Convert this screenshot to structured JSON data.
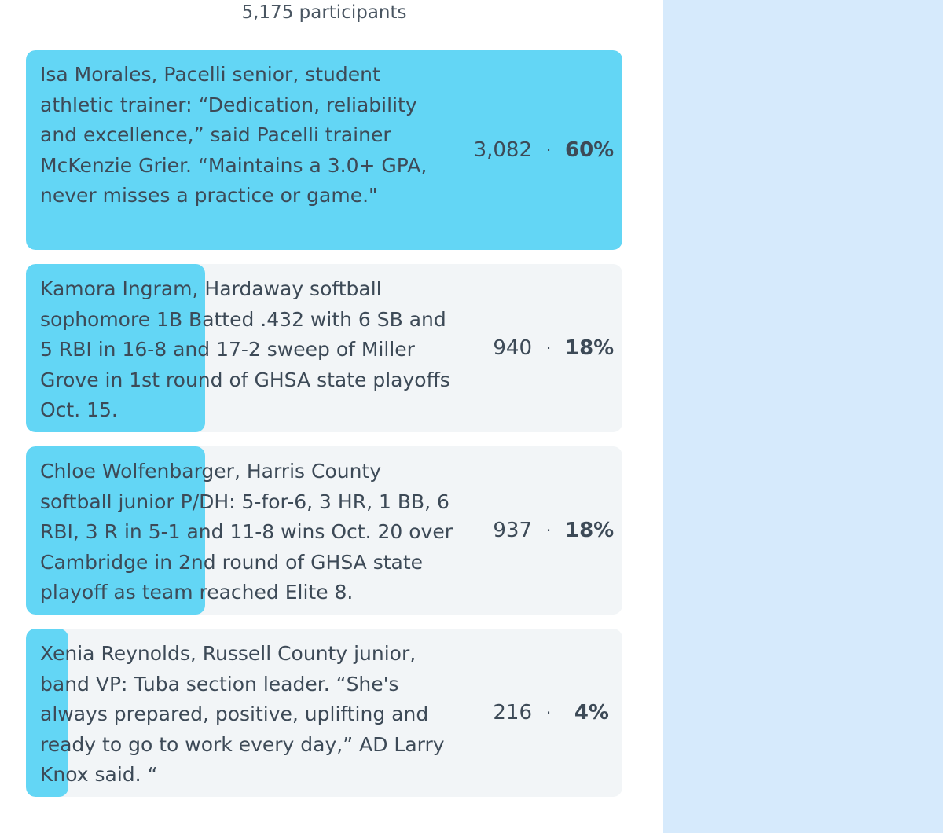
{
  "colors": {
    "bar_fill": "#63d6f5",
    "option_background": "#f2f5f7",
    "side_panel": "#d6eafc",
    "text": "#3d4a57"
  },
  "poll": {
    "participants_label": "5,175 participants",
    "options": [
      {
        "text": "Isa Morales, Pacelli senior, student athletic trainer: “Dedication, reliability and excellence,” said Pacelli trainer McKenzie Grier. “Maintains a 3.0+ GPA, never misses a practice or game.\"",
        "votes": "3,082",
        "percent": "60%",
        "share": 0.6
      },
      {
        "text": "Kamora Ingram, Hardaway softball sophomore 1B Batted .432 with 6 SB and 5 RBI in 16-8 and 17-2 sweep of Miller Grove in 1st round of GHSA state playoffs Oct. 15.",
        "votes": "940",
        "percent": "18%",
        "share": 0.18
      },
      {
        "text": "Chloe Wolfenbarger, Harris County softball junior P/DH: 5-for-6, 3 HR, 1 BB, 6 RBI, 3 R in 5-1 and 11-8 wins Oct. 20 over Cambridge in 2nd round of GHSA state playoff as team reached Elite 8.",
        "votes": "937",
        "percent": "18%",
        "share": 0.18
      },
      {
        "text": "Xenia Reynolds, Russell County junior, band VP: Tuba section leader. “She's always prepared, positive, uplifting and ready to go to work every day,” AD Larry Knox said. “",
        "votes": "216",
        "percent": "4%",
        "share": 0.04
      }
    ],
    "separator": "·"
  }
}
